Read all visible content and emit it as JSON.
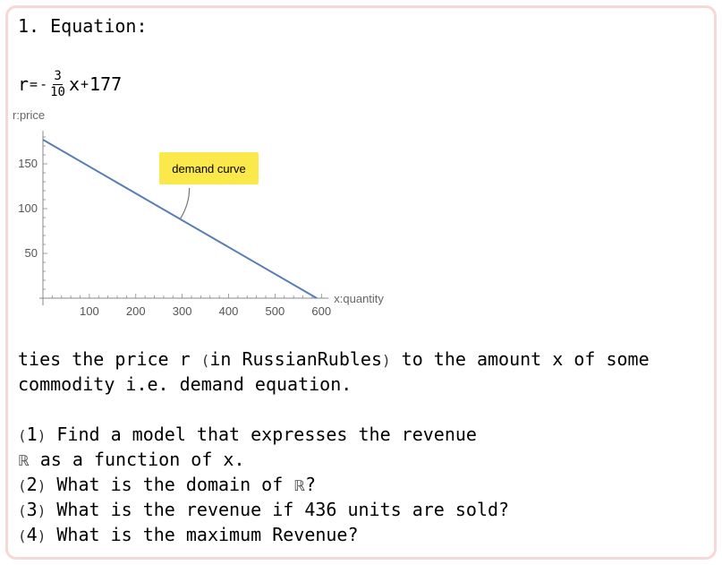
{
  "cell": {
    "heading": "1. Equation:",
    "equation": {
      "lhs": "r",
      "eq": "=",
      "sign": "-",
      "numerator": "3",
      "denominator": "10",
      "var": "x",
      "plus": "+",
      "constant": "177"
    },
    "description": {
      "line1_pre": "ties the price r ",
      "lparen": "(",
      "unit": "in RussianRubles",
      "rparen": ")",
      "line1_post": " to the amount x of some",
      "line2": "commodity i.e. demand equation."
    },
    "questions": [
      {
        "number": "1",
        "text": " Find a model that expresses the revenue"
      },
      {
        "number": "2",
        "text": " What is the domain of "
      },
      {
        "number": "3",
        "text": " What is the revenue if 436 units are sold?"
      },
      {
        "number": "4",
        "text": " What is the maximum Revenue?"
      }
    ],
    "q1_line2_symbol": "ℝ",
    "q1_line2_text": " as a function of x.",
    "q2_symbol": "ℝ",
    "q2_end": "?",
    "colors": {
      "frame_border": "#f8d7d7",
      "line": "#5b7db5",
      "callout_fill": "#fbe84a"
    }
  },
  "chart_data": {
    "type": "line",
    "series": [
      {
        "x": [
          0,
          590
        ],
        "y": [
          177,
          0
        ]
      }
    ],
    "xlabel": "x:quantity",
    "ylabel": "r:price",
    "xticks": [
      100,
      200,
      300,
      400,
      500,
      600
    ],
    "yticks": [
      50,
      100,
      150
    ],
    "xlim": [
      0,
      600
    ],
    "ylim": [
      0,
      185
    ],
    "grid": false,
    "annotations": [
      {
        "text": "demand curve",
        "x": 300,
        "y": 87
      }
    ]
  }
}
